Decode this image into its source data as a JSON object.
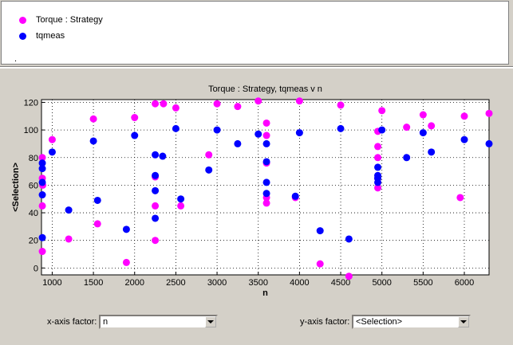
{
  "legend": {
    "items": [
      {
        "label": "Torque : Strategy",
        "color": "#ff00ff"
      },
      {
        "label": "tqmeas",
        "color": "#0000ff"
      }
    ],
    "trailing_mark": "."
  },
  "controls": {
    "x_label": "x-axis factor:",
    "x_value": "n",
    "y_label": "y-axis factor:",
    "y_value": "<Selection>"
  },
  "chart_data": {
    "type": "scatter",
    "title": "Torque : Strategy, tqmeas v n",
    "xlabel": "n",
    "ylabel": "<Selection>",
    "xlim": [
      870,
      6300
    ],
    "ylim": [
      -5,
      122
    ],
    "xticks": [
      1000,
      1500,
      2000,
      2500,
      3000,
      3500,
      4000,
      4500,
      5000,
      5500,
      6000
    ],
    "yticks": [
      0,
      20,
      40,
      60,
      80,
      100,
      120
    ],
    "grid": true,
    "series": [
      {
        "name": "Torque : Strategy",
        "color": "#ff00ff",
        "points": [
          [
            880,
            80
          ],
          [
            880,
            65
          ],
          [
            885,
            60
          ],
          [
            880,
            45
          ],
          [
            880,
            12
          ],
          [
            1000,
            93
          ],
          [
            1200,
            21
          ],
          [
            1500,
            108
          ],
          [
            1550,
            32
          ],
          [
            1900,
            4
          ],
          [
            2000,
            109
          ],
          [
            2250,
            119
          ],
          [
            2350,
            119
          ],
          [
            2250,
            66
          ],
          [
            2250,
            45
          ],
          [
            2250,
            20
          ],
          [
            2500,
            116
          ],
          [
            2560,
            45
          ],
          [
            2900,
            82
          ],
          [
            3000,
            119
          ],
          [
            3250,
            117
          ],
          [
            3500,
            121
          ],
          [
            3600,
            105
          ],
          [
            3600,
            96
          ],
          [
            3600,
            76
          ],
          [
            3600,
            51
          ],
          [
            3600,
            47
          ],
          [
            3950,
            51
          ],
          [
            4000,
            121
          ],
          [
            4250,
            3
          ],
          [
            4500,
            118
          ],
          [
            4600,
            -6
          ],
          [
            4950,
            99
          ],
          [
            4950,
            88
          ],
          [
            4950,
            80
          ],
          [
            4950,
            65
          ],
          [
            4950,
            58
          ],
          [
            5000,
            114
          ],
          [
            5300,
            102
          ],
          [
            5500,
            111
          ],
          [
            5600,
            103
          ],
          [
            5950,
            51
          ],
          [
            6000,
            110
          ],
          [
            6300,
            112
          ]
        ]
      },
      {
        "name": "tqmeas",
        "color": "#0000ff",
        "points": [
          [
            880,
            76
          ],
          [
            880,
            72
          ],
          [
            880,
            62
          ],
          [
            880,
            53
          ],
          [
            880,
            22
          ],
          [
            1000,
            84
          ],
          [
            1200,
            42
          ],
          [
            1500,
            92
          ],
          [
            1550,
            49
          ],
          [
            1900,
            28
          ],
          [
            2000,
            96
          ],
          [
            2250,
            82
          ],
          [
            2340,
            81
          ],
          [
            2250,
            67
          ],
          [
            2250,
            56
          ],
          [
            2250,
            36
          ],
          [
            2500,
            101
          ],
          [
            2560,
            50
          ],
          [
            2900,
            71
          ],
          [
            3000,
            100
          ],
          [
            3250,
            90
          ],
          [
            3500,
            97
          ],
          [
            3600,
            90
          ],
          [
            3600,
            77
          ],
          [
            3600,
            62
          ],
          [
            3600,
            54
          ],
          [
            3950,
            52
          ],
          [
            4000,
            98
          ],
          [
            4250,
            27
          ],
          [
            4500,
            101
          ],
          [
            4600,
            21
          ],
          [
            4950,
            73
          ],
          [
            4950,
            67
          ],
          [
            4950,
            65
          ],
          [
            4950,
            62
          ],
          [
            5000,
            100
          ],
          [
            5300,
            80
          ],
          [
            5500,
            98
          ],
          [
            5600,
            84
          ],
          [
            6000,
            93
          ],
          [
            6300,
            90
          ]
        ]
      }
    ]
  }
}
